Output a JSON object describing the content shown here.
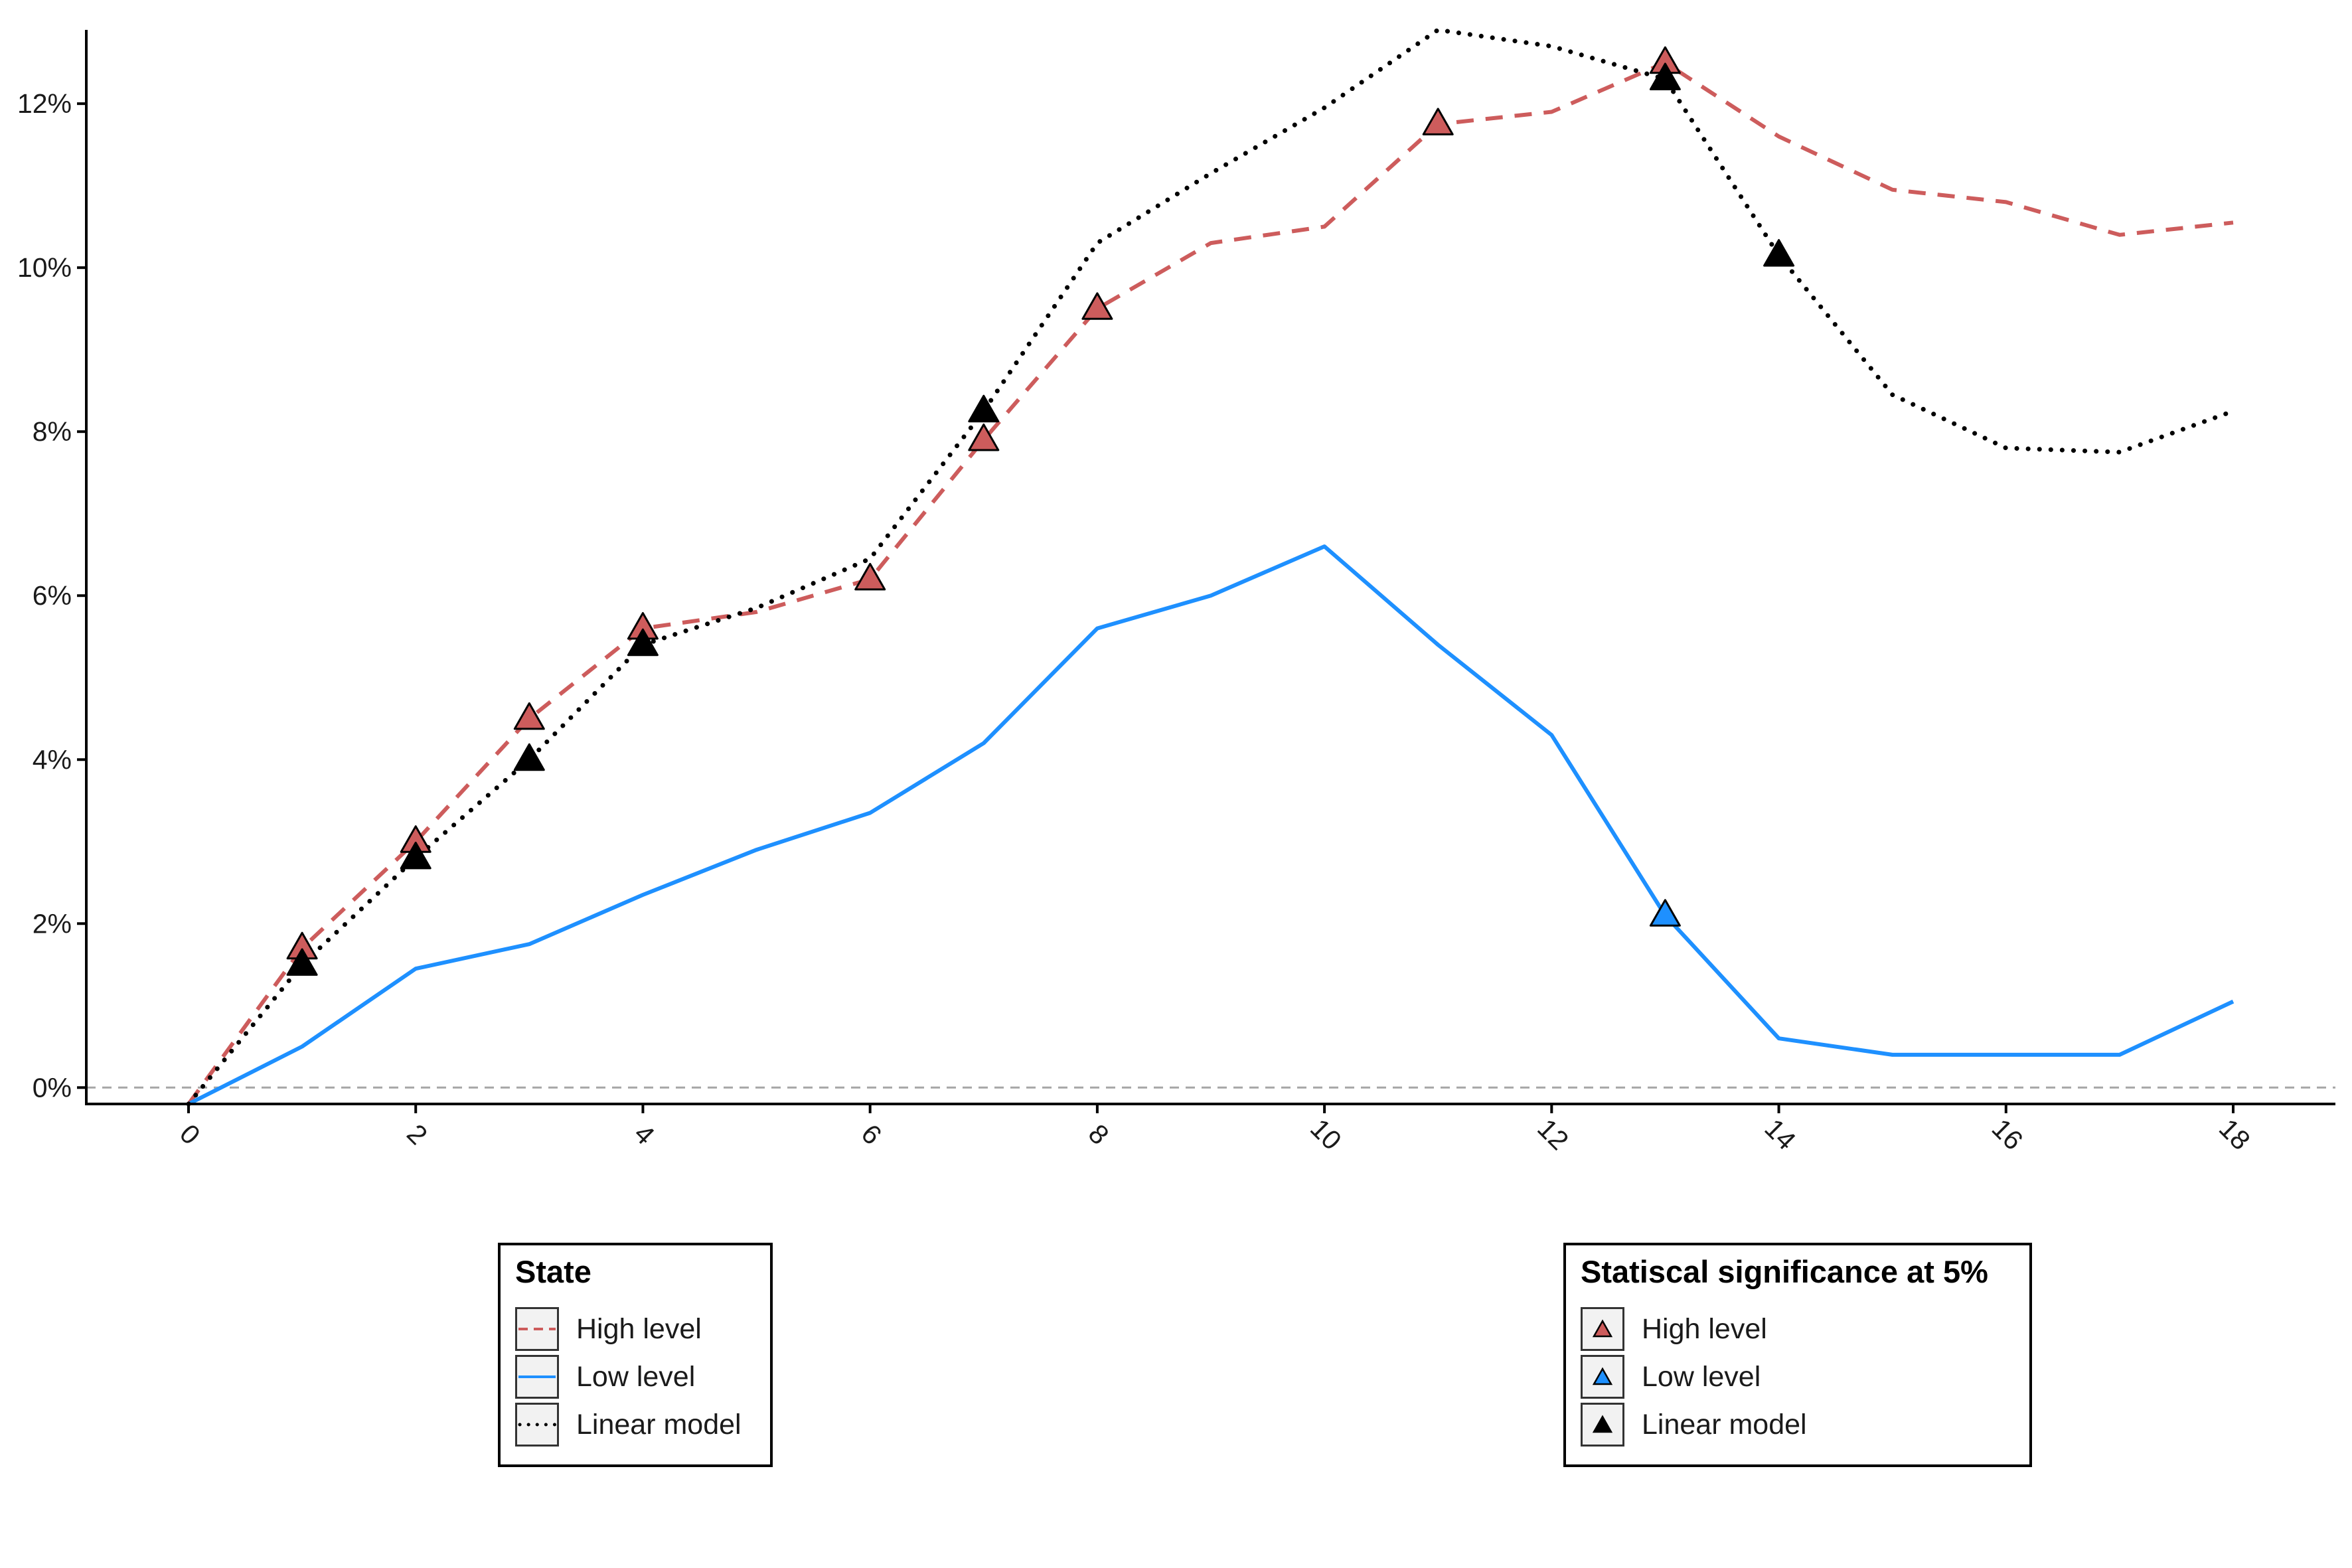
{
  "chart_data": {
    "type": "line",
    "title": "",
    "xlabel": "",
    "ylabel": "",
    "x": [
      0,
      1,
      2,
      3,
      4,
      5,
      6,
      7,
      8,
      9,
      10,
      11,
      12,
      13,
      14,
      15,
      16,
      17,
      18
    ],
    "x_ticks": [
      "0",
      "2",
      "4",
      "6",
      "8",
      "10",
      "12",
      "14",
      "16",
      "18"
    ],
    "y_ticks": [
      "0%",
      "2%",
      "4%",
      "6%",
      "8%",
      "10%",
      "12%"
    ],
    "xlim": [
      -0.9,
      18.9
    ],
    "ylim": [
      -0.2,
      12.9
    ],
    "y_unit": "%",
    "grid": false,
    "zero_line": true,
    "series": [
      {
        "name": "High level",
        "style": "dashed",
        "color": "#CD5C5C",
        "values": [
          -0.2,
          1.7,
          3.0,
          4.5,
          5.6,
          5.8,
          6.2,
          7.9,
          9.5,
          10.3,
          10.5,
          11.75,
          11.9,
          12.5,
          11.6,
          10.95,
          10.8,
          10.4,
          10.55
        ],
        "significant_x": [
          1,
          2,
          3,
          4,
          6,
          7,
          8,
          11,
          13
        ]
      },
      {
        "name": "Low level",
        "style": "solid",
        "color": "#1E90FF",
        "values": [
          -0.2,
          0.5,
          1.45,
          1.75,
          2.35,
          2.9,
          3.35,
          4.2,
          5.6,
          6.0,
          6.6,
          5.4,
          4.3,
          2.1,
          0.6,
          0.4,
          0.4,
          0.4,
          1.05
        ],
        "significant_x": [
          13
        ]
      },
      {
        "name": "Linear model",
        "style": "dotted",
        "color": "#000000",
        "values": [
          -0.2,
          1.5,
          2.8,
          4.0,
          5.4,
          5.85,
          6.45,
          8.25,
          10.3,
          11.15,
          11.95,
          12.9,
          12.7,
          12.3,
          10.15,
          8.45,
          7.8,
          7.75,
          8.25
        ],
        "significant_x": [
          1,
          2,
          3,
          4,
          7,
          13,
          14
        ]
      }
    ],
    "legends": {
      "state": {
        "title": "State",
        "items": [
          {
            "label": "High level",
            "color": "#CD5C5C",
            "style": "dashed"
          },
          {
            "label": "Low level",
            "color": "#1E90FF",
            "style": "solid"
          },
          {
            "label": "Linear model",
            "color": "#000000",
            "style": "dotted"
          }
        ]
      },
      "significance": {
        "title": "Statiscal significance at 5%",
        "items": [
          {
            "label": "High level",
            "color": "#CD5C5C",
            "marker": "triangle"
          },
          {
            "label": "Low level",
            "color": "#1E90FF",
            "marker": "triangle"
          },
          {
            "label": "Linear model",
            "color": "#000000",
            "marker": "triangle"
          }
        ]
      },
      "placement": "bottom"
    }
  }
}
